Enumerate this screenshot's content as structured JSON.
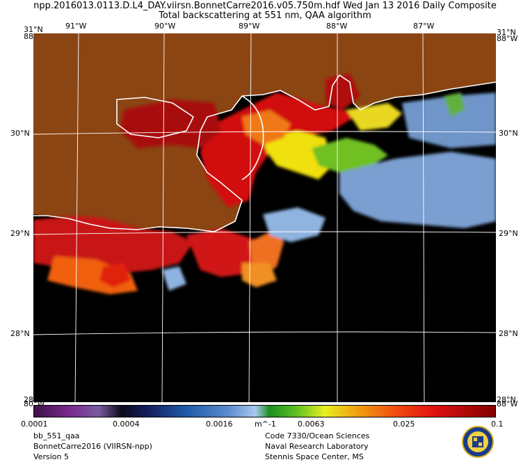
{
  "header": {
    "title_line1": "npp.2016013.0113.D.L4_DAY.viirsn.BonnetCarre2016.v05.750m.hdf    Wed Jan 13 2016 Daily Composite",
    "title_line2": "Total backscattering at 551 nm, QAA algorithm"
  },
  "map": {
    "lon_labels": [
      "91°W",
      "90°W",
      "89°W",
      "88°W",
      "87°W"
    ],
    "lat_labels": [
      "30°N",
      "29°N",
      "28°N"
    ],
    "corner_labels": {
      "top_left_lat": "31°N",
      "top_left_lon": "88°W",
      "top_right_lat": "31°N",
      "top_right_lon": "88°W",
      "bottom_left_lat": "28°N",
      "bottom_left_lon": "80°W",
      "bottom_right_lat": "28°N",
      "bottom_right_lon": "88°W"
    },
    "colors": {
      "land": "#8b4513",
      "no_data": "#000000",
      "graticule": "#ffffff",
      "coastline": "#ffffff"
    }
  },
  "colorbar": {
    "tick_labels": [
      "0.0001",
      "0.0004",
      "0.0016",
      "0.0063",
      "0.025",
      "0.1"
    ],
    "unit": "m^-1",
    "scale": "log",
    "range": [
      0.0001,
      0.1
    ]
  },
  "footer": {
    "left": [
      "bb_551_qaa",
      "BonnetCarre2016 (VIIRSN-npp)",
      "Version 5"
    ],
    "right": [
      "Code 7330/Ocean Sciences",
      "Naval Research Laboratory",
      "Stennis Space Center, MS"
    ],
    "logo": "nrl-seal-icon"
  }
}
